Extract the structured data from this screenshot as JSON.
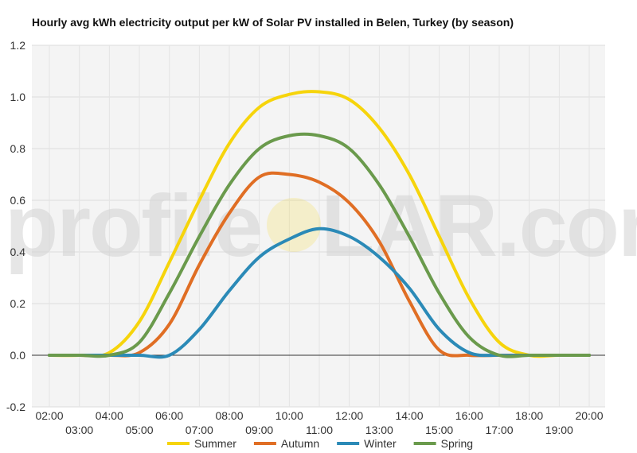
{
  "chart_data": {
    "type": "line",
    "title": "Hourly avg kWh electricity output per kW of Solar PV installed in Belen, Turkey (by season)",
    "xlabel": "",
    "ylabel": "",
    "x": [
      "02:00",
      "03:00",
      "04:00",
      "05:00",
      "06:00",
      "07:00",
      "08:00",
      "09:00",
      "10:00",
      "11:00",
      "12:00",
      "13:00",
      "14:00",
      "15:00",
      "16:00",
      "17:00",
      "18:00",
      "19:00",
      "20:00"
    ],
    "ylim": [
      -0.2,
      1.2
    ],
    "yticks": [
      "-0.2",
      "0.0",
      "0.2",
      "0.4",
      "0.6",
      "0.8",
      "1.0",
      "1.2"
    ],
    "grid": true,
    "legend": "bottom",
    "series": [
      {
        "name": "Summer",
        "color": "#f6d40b",
        "values": [
          0,
          0,
          0.01,
          0.13,
          0.36,
          0.6,
          0.82,
          0.96,
          1.01,
          1.02,
          0.99,
          0.88,
          0.7,
          0.46,
          0.22,
          0.05,
          0,
          0,
          0
        ]
      },
      {
        "name": "Autumn",
        "color": "#e06e24",
        "values": [
          0,
          0,
          0,
          0.01,
          0.12,
          0.35,
          0.55,
          0.69,
          0.7,
          0.67,
          0.59,
          0.44,
          0.21,
          0.02,
          0,
          0,
          0,
          0,
          0
        ]
      },
      {
        "name": "Winter",
        "color": "#2b8ab7",
        "values": [
          0,
          0,
          0,
          0,
          0,
          0.1,
          0.25,
          0.38,
          0.45,
          0.49,
          0.46,
          0.38,
          0.26,
          0.1,
          0.01,
          0,
          0,
          0,
          0
        ]
      },
      {
        "name": "Spring",
        "color": "#6a9a4c",
        "values": [
          0,
          0,
          0,
          0.05,
          0.24,
          0.46,
          0.66,
          0.8,
          0.85,
          0.85,
          0.8,
          0.66,
          0.46,
          0.24,
          0.07,
          0,
          0,
          0,
          0
        ]
      }
    ]
  },
  "watermark": {
    "left": "profile",
    "right": "LAR.com",
    "sun_color": "#f6d40b"
  }
}
